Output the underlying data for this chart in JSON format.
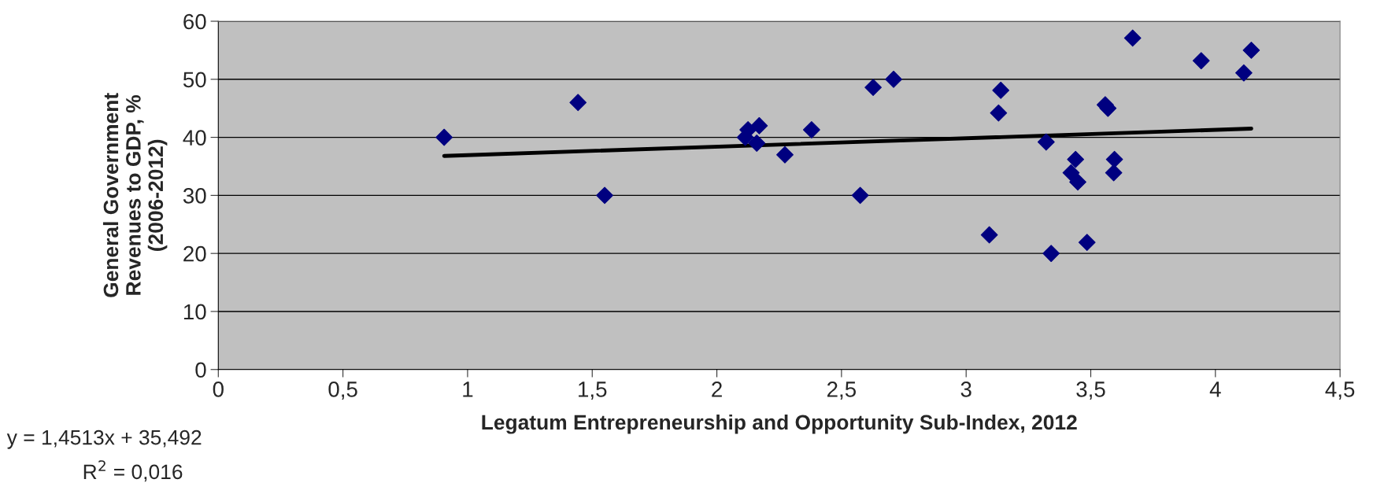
{
  "chart_data": {
    "type": "scatter",
    "xlabel": "Legatum Entrepreneurship and Opportunity Sub-Index, 2012",
    "ylabel": "General Government\nRevenues to GDP, %\n(2006-2012)",
    "annotations": [
      "y = 1,4513x + 35,492",
      "R$^{2}$ = 0,016"
    ],
    "series": [
      {
        "color": "#000080",
        "marker": "diamond",
        "x": [
          0.906,
          1.443,
          1.55,
          2.114,
          2.125,
          2.17,
          2.16,
          2.273,
          2.38,
          2.575,
          2.627,
          2.709,
          3.093,
          3.13,
          3.139,
          3.321,
          3.341,
          3.439,
          3.421,
          3.448,
          3.485,
          3.558,
          3.569,
          3.595,
          3.592,
          3.668,
          3.943,
          4.114,
          4.144
        ],
        "values": [
          40,
          46,
          30,
          40,
          41.3,
          42,
          39,
          37,
          41.3,
          30,
          48.6,
          50,
          23.2,
          44.2,
          48.1,
          39.2,
          20,
          36.2,
          33.9,
          32.3,
          21.9,
          45.6,
          45,
          36.2,
          33.9,
          57.1,
          53.2,
          51.1,
          55
        ]
      },
      {
        "type": "line",
        "color": "#000000",
        "marker": "none",
        "x": [
          0.906,
          4.144
        ],
        "values": [
          36.8,
          41.5
        ]
      }
    ],
    "xlim": [
      0,
      4.5
    ],
    "xticks": [
      0,
      {
        "value": 0.5,
        "label": "0,5"
      },
      1,
      {
        "value": 1.5,
        "label": "1,5"
      },
      2,
      {
        "value": 2.5,
        "label": "2,5"
      },
      3,
      {
        "value": 3.5,
        "label": "3,5"
      },
      4,
      {
        "value": 4.5,
        "label": "4,5"
      }
    ],
    "ylim": [
      0,
      60
    ],
    "yticks": [
      0,
      10,
      20,
      30,
      40,
      50,
      60
    ],
    "grid": "y"
  }
}
